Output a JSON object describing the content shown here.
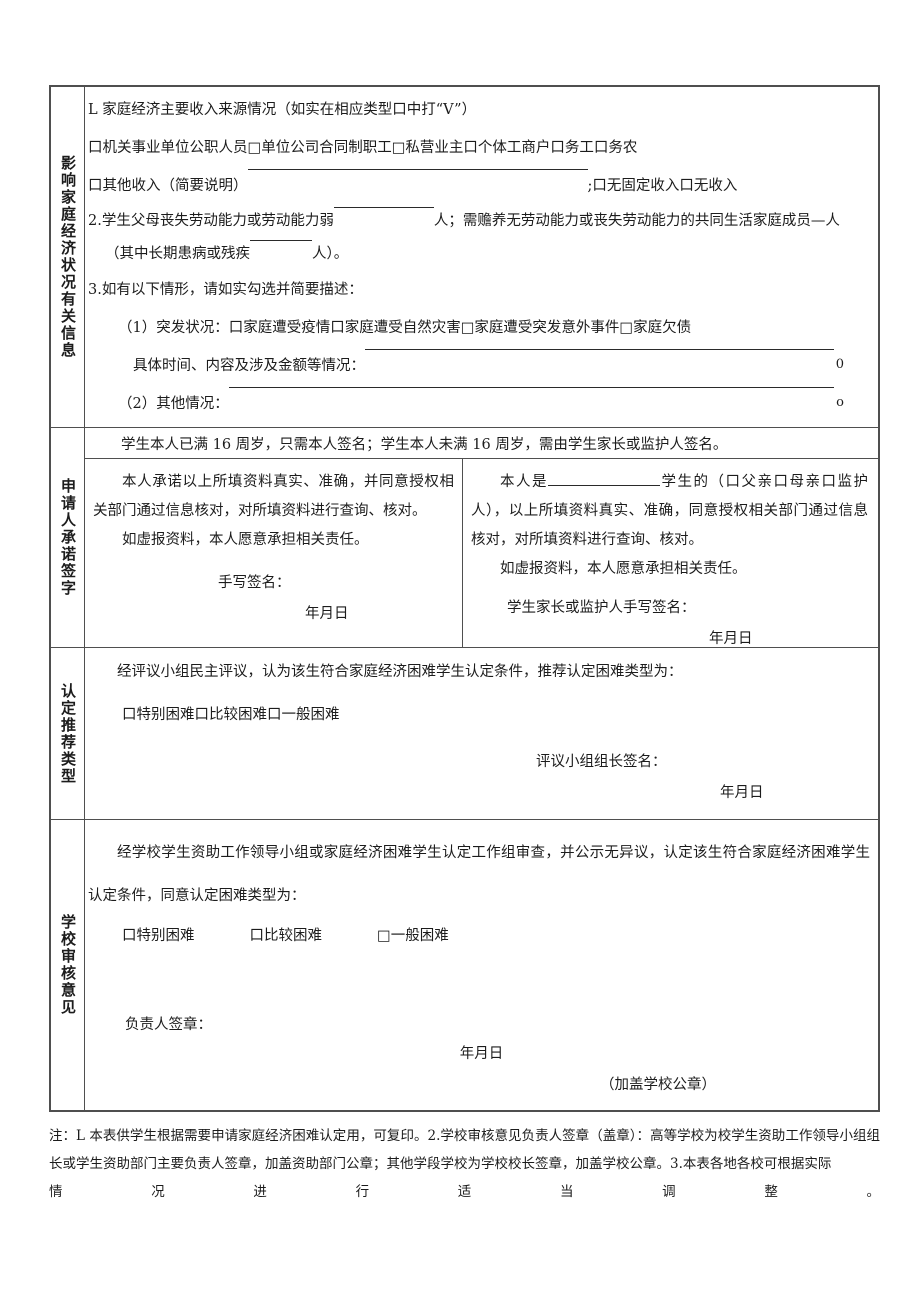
{
  "colors": {
    "background": "#ffffff",
    "text": "#1c1c1c",
    "border": "#4f4f4f"
  },
  "section1": {
    "label": "影响家庭经济状况有关信息",
    "l1": "L 家庭经济主要收入来源情况（如实在相应类型口中打“V”）",
    "l2": "口机关事业单位公职人员□单位公司合同制职工□私营业主口个体工商户口务工口务农",
    "l3a": "口其他收入（简要说明）",
    "l3b": ";口无固定收入口无收入",
    "l4a": "2.学生父母丧失劳动能力或劳动能力弱",
    "l4b": "人；需赡养无劳动能力或丧失劳动能力的共同生活家庭成员—人",
    "l5a": "（其中长期患病或残疾",
    "l5b": "人）。",
    "l6": "3.如有以下情形，请如实勾选并简要描述：",
    "l7": "（1）突发状况：口家庭遭受疫情口家庭遭受自然灾害□家庭遭受突发意外事件□家庭欠债",
    "l8a": "具体时间、内容及涉及金额等情况：",
    "l8_end": "0",
    "l9a": "（2）其他情况：",
    "l9_end": "o"
  },
  "section2": {
    "label": "申请人承诺签字",
    "header": "学生本人已满 16 周岁，只需本人签名；学生本人未满 16 周岁，需由学生家长或监护人签名。",
    "left": {
      "p1": "本人承诺以上所填资料真实、准确，并同意授权相关部门通过信息核对，对所填资料进行查询、核对。",
      "p2": "如虚报资料，本人愿意承担相关责任。",
      "sign_label": "手写签名：",
      "date": "年月日"
    },
    "right": {
      "p1a": "本人是",
      "p1b": "学生的（口父亲口母亲口监护人），以上所填资料真实、准确，同意授权相关部门通过信息核对，对所填资料进行查询、核对。",
      "p2": "如虚报资料，本人愿意承担相关责任。",
      "sign_label": "学生家长或监护人手写签名：",
      "date": "年月日"
    }
  },
  "section3": {
    "label": "认定推荐类型",
    "p1": "经评议小组民主评议，认为该生符合家庭经济困难学生认定条件，推荐认定困难类型为：",
    "options": "口特别困难口比较困难口一般困难",
    "sign_label": "评议小组组长签名：",
    "date": "年月日"
  },
  "section4": {
    "label": "学校审核意见",
    "p1": "经学校学生资助工作领导小组或家庭经济困难学生认定工作组审查，并公示无异议，认定该生符合家庭经济困难学生认定条件，同意认定困难类型为：",
    "opt1": "口特别困难",
    "opt2": "口比较困难",
    "opt3": "□一般困难",
    "sign_label": "负责人签章：",
    "date": "年月日",
    "seal": "（加盖学校公章）"
  },
  "notes": {
    "main": "注：L 本表供学生根据需要申请家庭经济困难认定用，可复印。2.学校审核意见负责人签章（盖章）：高等学校为校学生资助工作领导小组组长或学生资助部门主要负责人签章，加盖资助部门公章；其他学段学校为学校校长签章，加盖学校公章。3.本表各地各校可根据实际",
    "last_line": "情况进行适当调整。"
  }
}
